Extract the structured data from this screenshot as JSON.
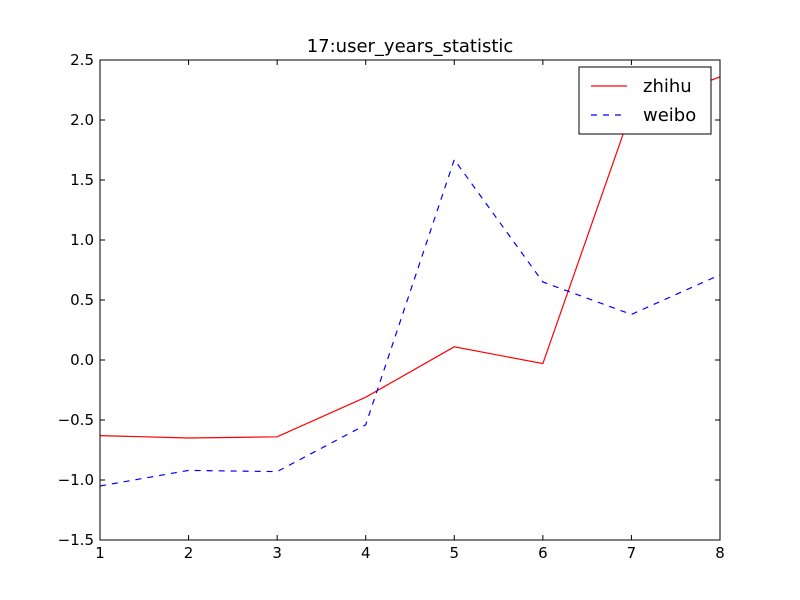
{
  "chart_data": {
    "type": "line",
    "title": "17:user_years_statistic",
    "xlabel": "",
    "ylabel": "",
    "x": [
      1,
      2,
      3,
      4,
      5,
      6,
      7,
      8
    ],
    "xlim": [
      1,
      8
    ],
    "ylim": [
      -1.5,
      2.5
    ],
    "x_ticks": [
      "1",
      "2",
      "3",
      "4",
      "5",
      "6",
      "7",
      "8"
    ],
    "y_ticks": [
      "−1.5",
      "−1.0",
      "−0.5",
      "0.0",
      "0.5",
      "1.0",
      "1.5",
      "2.0",
      "2.5"
    ],
    "y_tick_values": [
      -1.5,
      -1.0,
      -0.5,
      0.0,
      0.5,
      1.0,
      1.5,
      2.0,
      2.5
    ],
    "grid": false,
    "legend_position": "top-right",
    "series": [
      {
        "name": "zhihu",
        "color": "#ff0000",
        "style": "solid",
        "values": [
          -0.63,
          -0.65,
          -0.64,
          -0.31,
          0.11,
          -0.03,
          2.08,
          2.36
        ]
      },
      {
        "name": "weibo",
        "color": "#0000ff",
        "style": "dashed",
        "values": [
          -1.05,
          -0.92,
          -0.93,
          -0.54,
          1.67,
          0.65,
          0.38,
          0.71
        ]
      }
    ]
  }
}
